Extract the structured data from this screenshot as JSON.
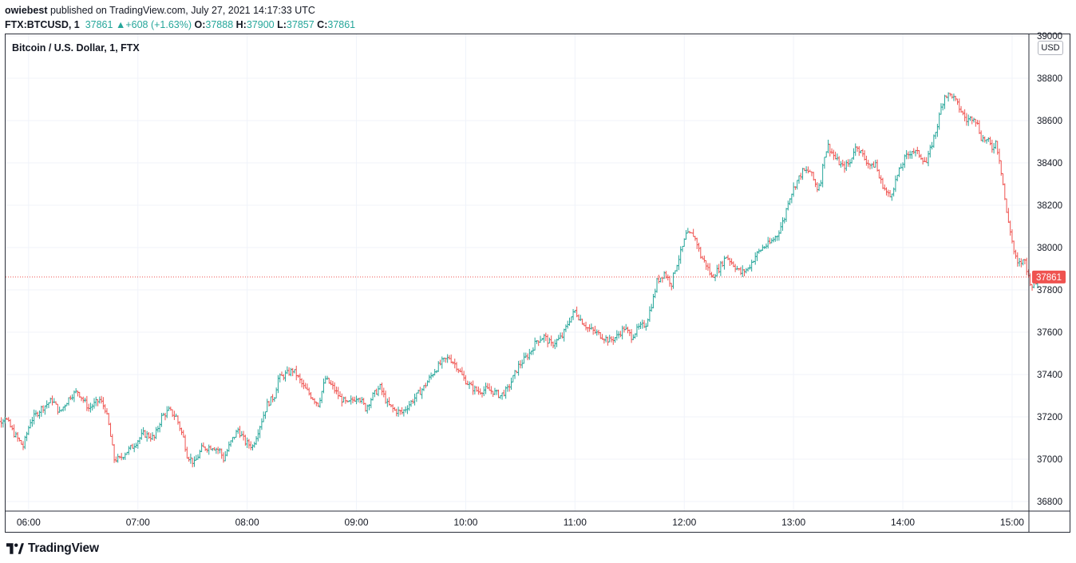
{
  "header": {
    "author": "owiebest",
    "published_text": "published on TradingView.com, July 27, 2021 14:17:33 UTC",
    "symbol": "FTX:BTCUSD, 1",
    "last": "37861",
    "change_arrow": "▲",
    "change": "+608 (+1.63%)",
    "o_label": "O:",
    "o_value": "37888",
    "h_label": "H:",
    "h_value": "37900",
    "l_label": "L:",
    "l_value": "37857",
    "c_label": "C:",
    "c_value": "37861"
  },
  "chart_title": "Bitcoin / U.S. Dollar, 1, FTX",
  "currency_label": "USD",
  "current_price_label": "37861",
  "brand": {
    "name": "TradingView",
    "icon": "tradingview-logo-icon"
  },
  "colors": {
    "up": "#26a69a",
    "down": "#ef5350",
    "price_line": "#ef5350"
  },
  "chart_data": {
    "type": "ohlc",
    "title": "Bitcoin / U.S. Dollar, 1, FTX",
    "interval": "1 minute",
    "ylim": [
      36720,
      39000
    ],
    "y_ticks": [
      "39000",
      "38800",
      "38600",
      "38400",
      "38200",
      "38000",
      "37800",
      "37600",
      "37400",
      "37200",
      "37000",
      "36800"
    ],
    "x_ticks": [
      "06:00",
      "07:00",
      "08:00",
      "09:00",
      "10:00",
      "11:00",
      "12:00",
      "13:00",
      "14:00",
      "15:00"
    ],
    "x_range_minutes": [
      -21,
      573
    ],
    "current_price": 37861,
    "grid": true,
    "series": [
      {
        "note": "price path anchor points (minutes since 06:00, price) used to draw bars",
        "path": [
          [
            -20,
            37120
          ],
          [
            -10,
            37200
          ],
          [
            -5,
            37120
          ],
          [
            0,
            37060
          ],
          [
            4,
            37180
          ],
          [
            10,
            37240
          ],
          [
            16,
            37280
          ],
          [
            20,
            37220
          ],
          [
            26,
            37300
          ],
          [
            30,
            37320
          ],
          [
            36,
            37240
          ],
          [
            42,
            37280
          ],
          [
            45,
            37240
          ],
          [
            47,
            37160
          ],
          [
            50,
            37000
          ],
          [
            53,
            37000
          ],
          [
            56,
            37030
          ],
          [
            60,
            37060
          ],
          [
            66,
            37120
          ],
          [
            72,
            37100
          ],
          [
            76,
            37200
          ],
          [
            80,
            37230
          ],
          [
            84,
            37200
          ],
          [
            88,
            37100
          ],
          [
            90,
            37020
          ],
          [
            94,
            36980
          ],
          [
            98,
            37050
          ],
          [
            104,
            37060
          ],
          [
            108,
            37040
          ],
          [
            110,
            37000
          ],
          [
            114,
            37080
          ],
          [
            118,
            37140
          ],
          [
            122,
            37080
          ],
          [
            126,
            37060
          ],
          [
            130,
            37160
          ],
          [
            134,
            37260
          ],
          [
            138,
            37300
          ],
          [
            140,
            37380
          ],
          [
            144,
            37400
          ],
          [
            148,
            37420
          ],
          [
            150,
            37400
          ],
          [
            154,
            37340
          ],
          [
            158,
            37300
          ],
          [
            162,
            37260
          ],
          [
            166,
            37380
          ],
          [
            170,
            37340
          ],
          [
            174,
            37290
          ],
          [
            178,
            37260
          ],
          [
            184,
            37300
          ],
          [
            188,
            37240
          ],
          [
            192,
            37300
          ],
          [
            196,
            37340
          ],
          [
            200,
            37260
          ],
          [
            204,
            37230
          ],
          [
            208,
            37220
          ],
          [
            212,
            37260
          ],
          [
            216,
            37300
          ],
          [
            220,
            37340
          ],
          [
            226,
            37420
          ],
          [
            230,
            37460
          ],
          [
            234,
            37480
          ],
          [
            238,
            37440
          ],
          [
            242,
            37380
          ],
          [
            246,
            37340
          ],
          [
            250,
            37320
          ],
          [
            254,
            37330
          ],
          [
            258,
            37320
          ],
          [
            262,
            37300
          ],
          [
            266,
            37330
          ],
          [
            272,
            37440
          ],
          [
            278,
            37500
          ],
          [
            282,
            37560
          ],
          [
            286,
            37580
          ],
          [
            290,
            37540
          ],
          [
            296,
            37580
          ],
          [
            300,
            37660
          ],
          [
            303,
            37700
          ],
          [
            306,
            37660
          ],
          [
            310,
            37620
          ],
          [
            314,
            37600
          ],
          [
            318,
            37580
          ],
          [
            322,
            37560
          ],
          [
            326,
            37580
          ],
          [
            330,
            37620
          ],
          [
            334,
            37580
          ],
          [
            338,
            37620
          ],
          [
            342,
            37640
          ],
          [
            344,
            37700
          ],
          [
            346,
            37760
          ],
          [
            348,
            37840
          ],
          [
            352,
            37880
          ],
          [
            356,
            37830
          ],
          [
            358,
            37900
          ],
          [
            362,
            38000
          ],
          [
            364,
            38060
          ],
          [
            368,
            38060
          ],
          [
            370,
            38020
          ],
          [
            372,
            37960
          ],
          [
            375,
            37920
          ],
          [
            378,
            37860
          ],
          [
            382,
            37900
          ],
          [
            386,
            37960
          ],
          [
            390,
            37920
          ],
          [
            394,
            37880
          ],
          [
            398,
            37900
          ],
          [
            402,
            37960
          ],
          [
            406,
            38000
          ],
          [
            410,
            38020
          ],
          [
            414,
            38060
          ],
          [
            418,
            38140
          ],
          [
            420,
            38220
          ],
          [
            424,
            38300
          ],
          [
            428,
            38360
          ],
          [
            432,
            38360
          ],
          [
            436,
            38280
          ],
          [
            438,
            38320
          ],
          [
            440,
            38440
          ],
          [
            442,
            38480
          ],
          [
            446,
            38420
          ],
          [
            450,
            38380
          ],
          [
            454,
            38400
          ],
          [
            456,
            38460
          ],
          [
            458,
            38480
          ],
          [
            462,
            38420
          ],
          [
            466,
            38380
          ],
          [
            468,
            38400
          ],
          [
            470,
            38330
          ],
          [
            474,
            38260
          ],
          [
            476,
            38240
          ],
          [
            480,
            38340
          ],
          [
            484,
            38420
          ],
          [
            488,
            38460
          ],
          [
            492,
            38440
          ],
          [
            496,
            38400
          ],
          [
            500,
            38520
          ],
          [
            502,
            38580
          ],
          [
            504,
            38660
          ],
          [
            506,
            38720
          ],
          [
            510,
            38720
          ],
          [
            514,
            38660
          ],
          [
            518,
            38600
          ],
          [
            522,
            38620
          ],
          [
            524,
            38580
          ],
          [
            526,
            38520
          ],
          [
            530,
            38500
          ],
          [
            532,
            38470
          ],
          [
            534,
            38500
          ],
          [
            536,
            38420
          ],
          [
            538,
            38300
          ],
          [
            540,
            38160
          ],
          [
            542,
            38080
          ],
          [
            544,
            37980
          ],
          [
            546,
            37920
          ],
          [
            550,
            37940
          ],
          [
            552,
            37860
          ],
          [
            554,
            37820
          ],
          [
            556,
            37830
          ],
          [
            558,
            37861
          ]
        ]
      }
    ]
  }
}
